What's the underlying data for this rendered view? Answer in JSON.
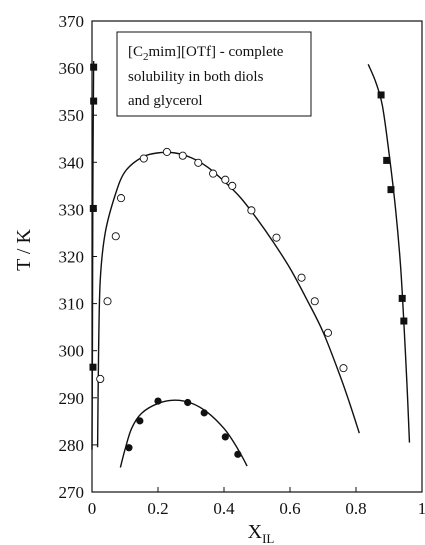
{
  "chart_data": {
    "type": "scatter",
    "xlabel": "X",
    "xlabel_subscript": "IL",
    "ylabel": "T / K",
    "xlim": [
      0,
      1
    ],
    "ylim": [
      270,
      370
    ],
    "x_ticks": [
      0,
      0.2,
      0.4,
      0.6,
      0.8,
      1
    ],
    "x_tick_labels": [
      "0",
      "0.2",
      "0.4",
      "0.6",
      "0.8",
      "1"
    ],
    "y_ticks": [
      270,
      280,
      290,
      300,
      310,
      320,
      330,
      340,
      350,
      360,
      370
    ],
    "y_tick_labels": [
      "270",
      "280",
      "290",
      "300",
      "310",
      "320",
      "330",
      "340",
      "350",
      "360",
      "370"
    ],
    "grid": false,
    "annotation": {
      "line1_prefix": "[C",
      "line1_sub": "2",
      "line1_suffix": "mim][OTf] - complete",
      "line2": "solubility in both diols",
      "line3": "and glycerol"
    },
    "series": [
      {
        "marker": "square-filled",
        "points": [
          [
            0.005,
            360.2
          ],
          [
            0.005,
            353.0
          ],
          [
            0.004,
            330.2
          ],
          [
            0.003,
            296.5
          ]
        ]
      },
      {
        "marker": "square-filled",
        "points": [
          [
            0.876,
            354.3
          ],
          [
            0.893,
            340.4
          ],
          [
            0.906,
            334.2
          ],
          [
            0.94,
            311.1
          ],
          [
            0.945,
            306.3
          ]
        ]
      },
      {
        "marker": "circle-open",
        "points": [
          [
            0.025,
            294.0
          ],
          [
            0.047,
            310.5
          ],
          [
            0.072,
            324.3
          ],
          [
            0.088,
            332.4
          ],
          [
            0.157,
            340.8
          ],
          [
            0.227,
            342.2
          ],
          [
            0.275,
            341.4
          ],
          [
            0.322,
            339.9
          ],
          [
            0.367,
            337.6
          ],
          [
            0.404,
            336.3
          ],
          [
            0.425,
            335.0
          ],
          [
            0.483,
            329.8
          ],
          [
            0.559,
            324.0
          ],
          [
            0.635,
            315.5
          ],
          [
            0.675,
            310.5
          ],
          [
            0.715,
            303.8
          ],
          [
            0.762,
            296.3
          ]
        ]
      },
      {
        "marker": "circle-filled",
        "points": [
          [
            0.112,
            279.4
          ],
          [
            0.145,
            285.1
          ],
          [
            0.2,
            289.3
          ],
          [
            0.29,
            289.0
          ],
          [
            0.34,
            286.8
          ],
          [
            0.404,
            281.7
          ],
          [
            0.442,
            278.0
          ]
        ]
      }
    ],
    "fitted_curves": [
      {
        "points": [
          [
            0.017,
            279.5
          ],
          [
            0.02,
            300
          ],
          [
            0.025,
            315
          ],
          [
            0.04,
            325
          ],
          [
            0.07,
            333
          ],
          [
            0.1,
            338
          ],
          [
            0.15,
            341
          ],
          [
            0.2,
            342
          ],
          [
            0.25,
            342
          ],
          [
            0.3,
            341
          ],
          [
            0.35,
            339
          ],
          [
            0.4,
            336
          ],
          [
            0.45,
            332.5
          ],
          [
            0.5,
            328
          ],
          [
            0.55,
            323
          ],
          [
            0.6,
            317.5
          ],
          [
            0.65,
            311
          ],
          [
            0.7,
            304
          ],
          [
            0.75,
            295
          ],
          [
            0.78,
            289
          ],
          [
            0.81,
            282.5
          ]
        ]
      },
      {
        "points": [
          [
            0.086,
            275.2
          ],
          [
            0.1,
            279
          ],
          [
            0.12,
            283.5
          ],
          [
            0.15,
            286.7
          ],
          [
            0.2,
            288.8
          ],
          [
            0.25,
            289.5
          ],
          [
            0.3,
            288.9
          ],
          [
            0.35,
            286.9
          ],
          [
            0.4,
            283.5
          ],
          [
            0.43,
            280.5
          ],
          [
            0.455,
            277.5
          ],
          [
            0.47,
            275.5
          ]
        ]
      },
      {
        "points": [
          [
            0.005,
            361.5
          ],
          [
            0.003,
            340
          ],
          [
            0.002,
            320
          ],
          [
            0.001,
            295
          ],
          [
            0.0,
            279
          ]
        ]
      },
      {
        "points": [
          [
            0.837,
            360.8
          ],
          [
            0.86,
            357
          ],
          [
            0.88,
            352
          ],
          [
            0.9,
            342
          ],
          [
            0.92,
            330
          ],
          [
            0.935,
            318
          ],
          [
            0.945,
            306
          ],
          [
            0.955,
            292
          ],
          [
            0.962,
            280.5
          ]
        ]
      }
    ]
  }
}
